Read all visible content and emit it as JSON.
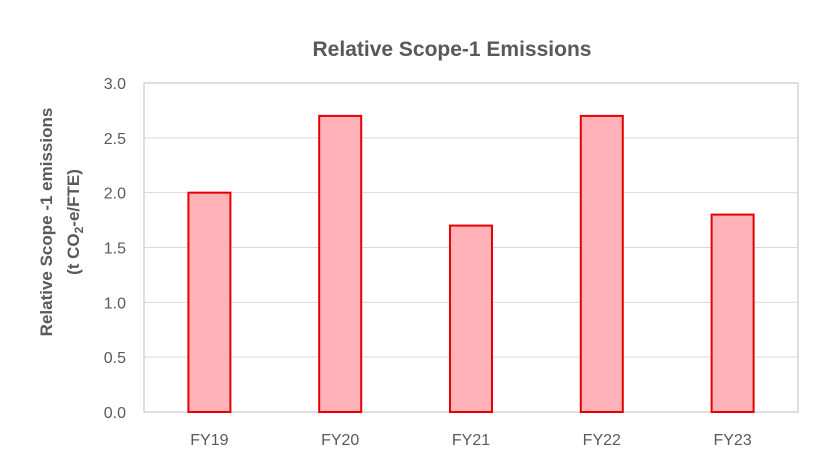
{
  "chart_data": {
    "type": "bar",
    "title": "Relative Scope-1 Emissions",
    "ylabel_line1": "Relative Scope -1 emissions",
    "ylabel_line2_a": "(t CO",
    "ylabel_line2_sub": "2",
    "ylabel_line2_b": "-e/FTE)",
    "categories": [
      "FY19",
      "FY20",
      "FY21",
      "FY22",
      "FY23"
    ],
    "values": [
      2.0,
      2.7,
      1.7,
      2.7,
      1.8
    ],
    "ylim": [
      0,
      3.0
    ],
    "yticks": [
      "0.0",
      "0.5",
      "1.0",
      "1.5",
      "2.0",
      "2.5",
      "3.0"
    ],
    "grid": true,
    "legend": "none",
    "colors": {
      "bar_fill": "#ffb3b8",
      "bar_stroke": "#e60000",
      "text": "#595959",
      "grid": "#d9d9d9"
    }
  }
}
